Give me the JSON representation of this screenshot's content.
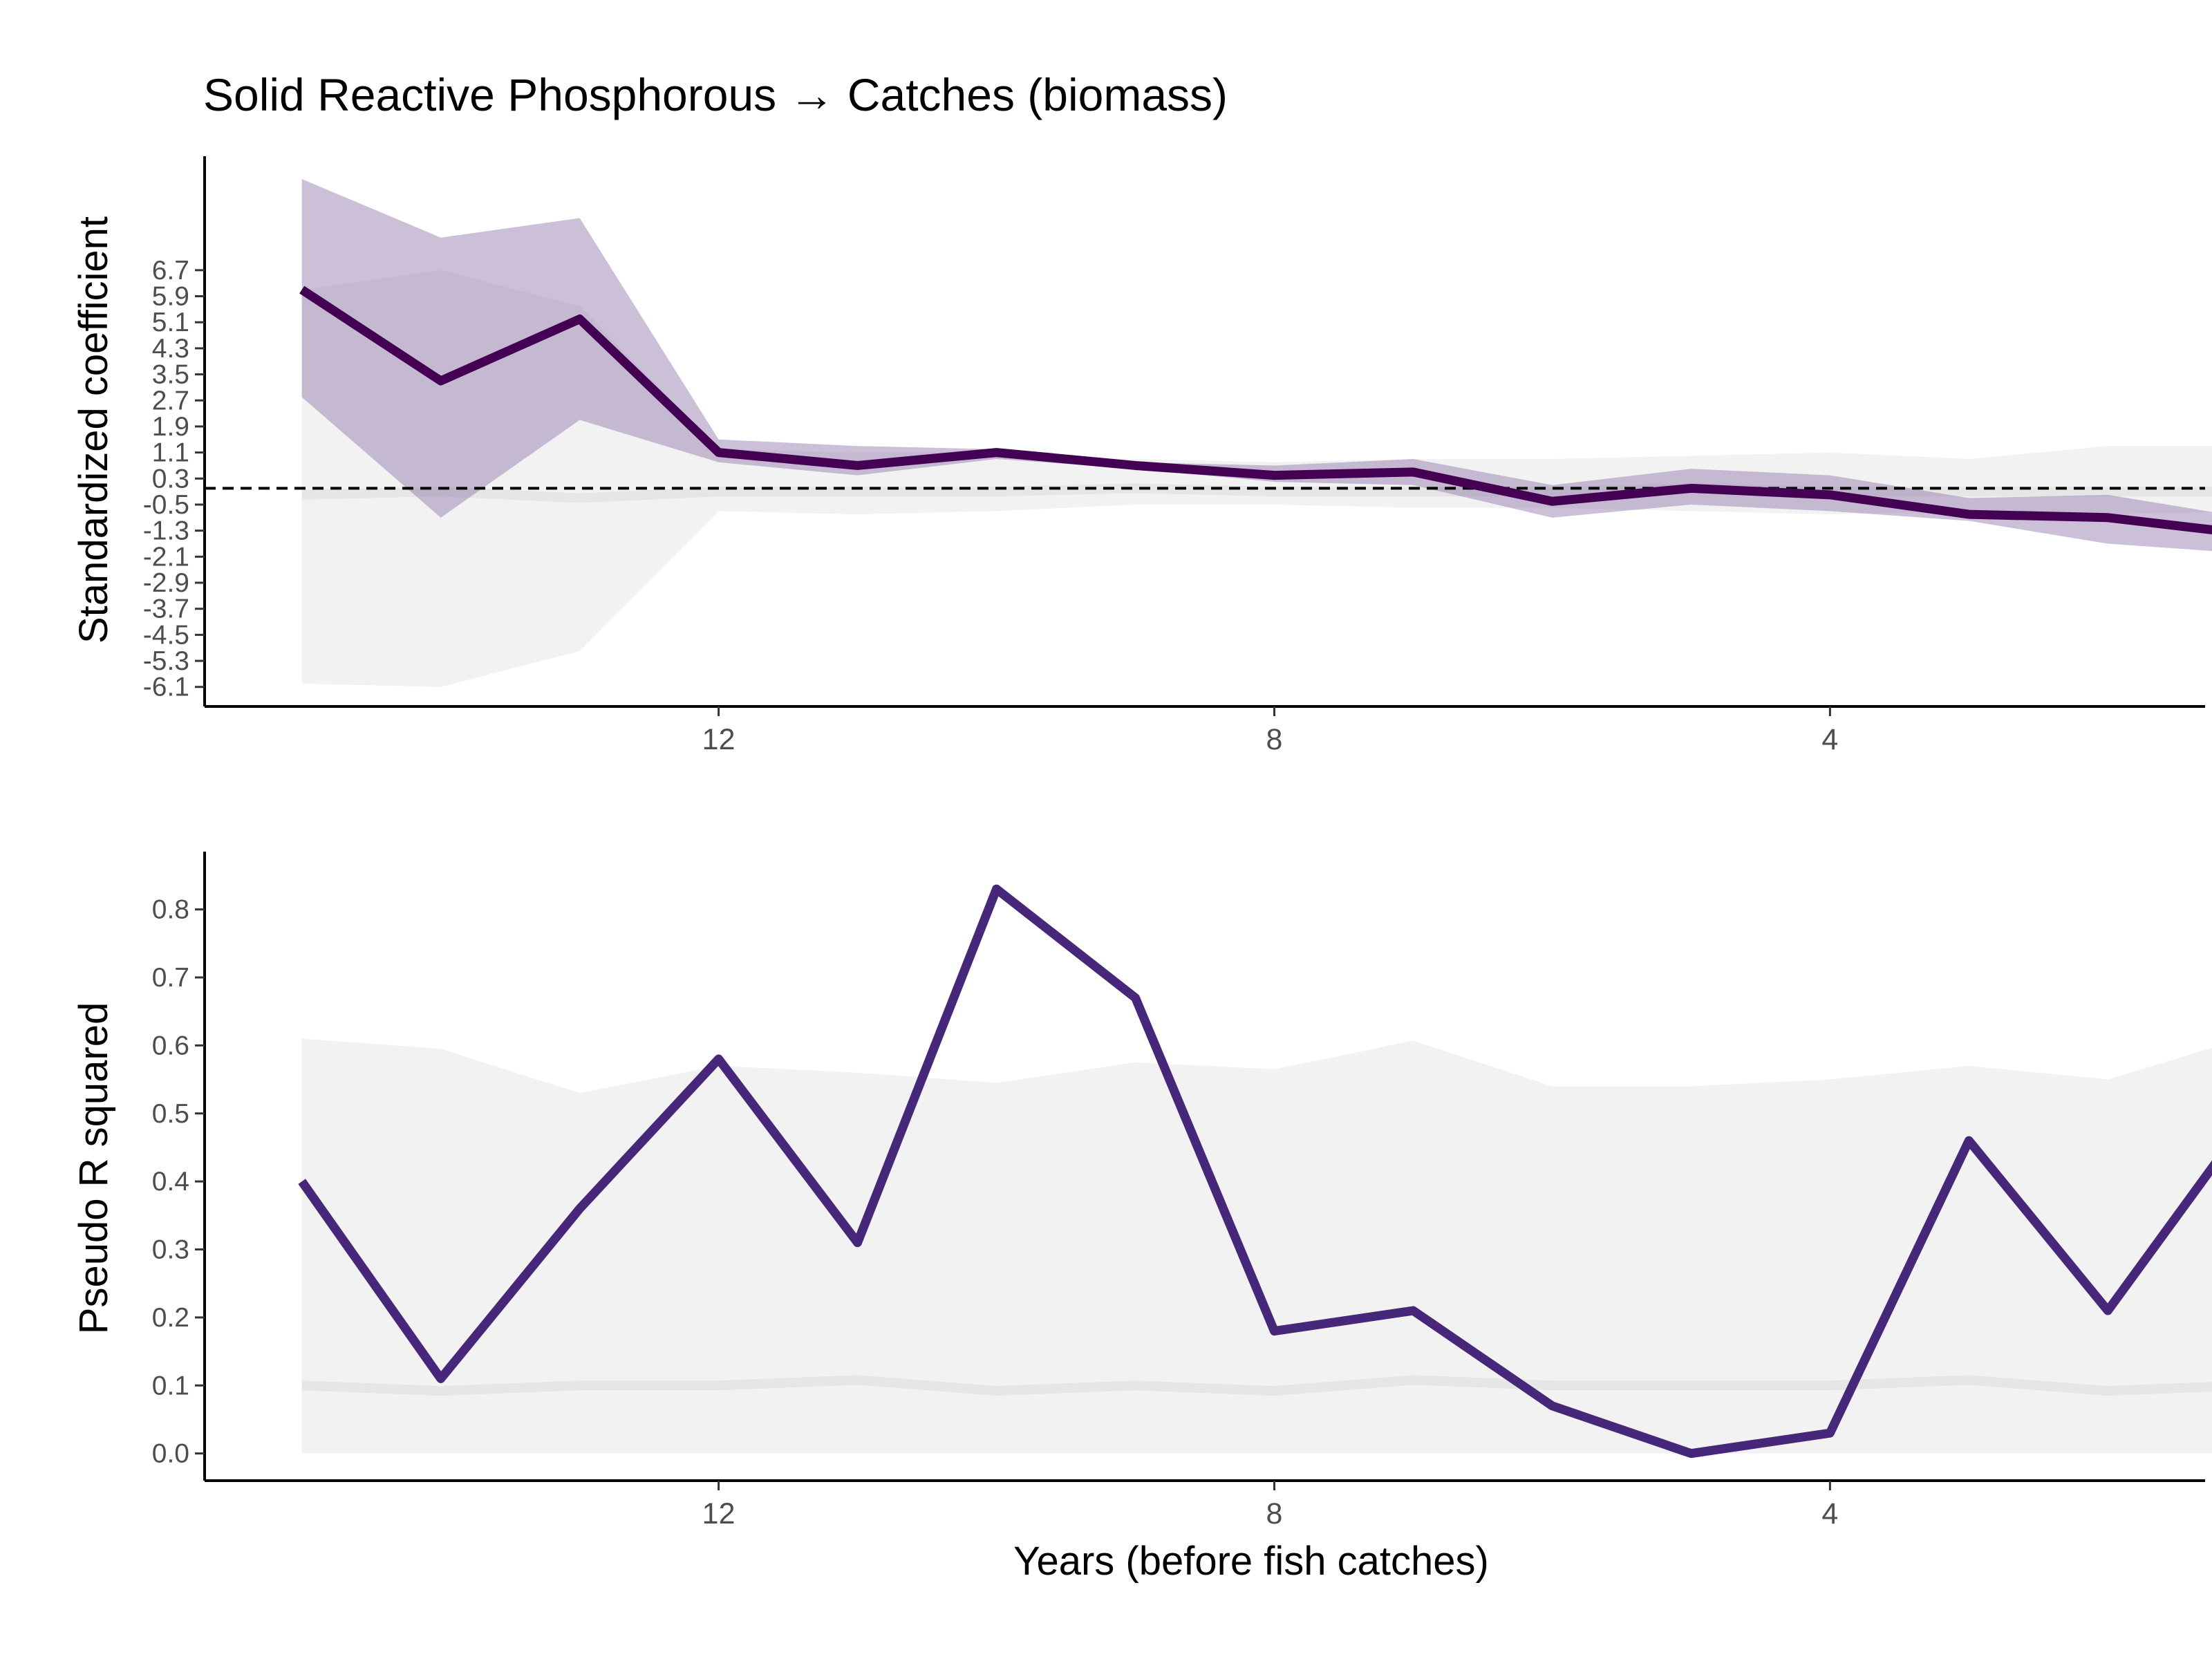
{
  "title": "Solid Reactive Phosphorous → Catches (biomass)",
  "colors": {
    "coef_line": "#440154",
    "coef_ci": "#8c74a8",
    "r2_line": "#46277a",
    "null_band": "#e6e6e6",
    "null_band_light": "#f2f2f2",
    "dashed": "#000000"
  },
  "chart_data": [
    {
      "type": "line",
      "ylabel": "Standardized coefficient",
      "xlabel": "",
      "x": [
        15,
        14,
        13,
        12,
        11,
        10,
        9,
        8,
        7,
        6,
        5,
        4,
        3,
        2,
        1
      ],
      "xlim": [
        15.7,
        1.3
      ],
      "x_ticks": [
        "12",
        "8",
        "4"
      ],
      "x_tick_values": [
        12,
        8,
        4
      ],
      "y_ticks": [
        "6.7",
        "5.9",
        "5.1",
        "4.3",
        "3.5",
        "2.7",
        "1.9",
        "1.1",
        "0.3",
        "-0.5",
        "-1.3",
        "-2.1",
        "-2.9",
        "-3.7",
        "-4.5",
        "-5.3",
        "-6.1"
      ],
      "y_tick_values": [
        6.7,
        5.9,
        5.1,
        4.3,
        3.5,
        2.7,
        1.9,
        1.1,
        0.3,
        -0.5,
        -1.3,
        -2.1,
        -2.9,
        -3.7,
        -4.5,
        -5.3,
        -6.1
      ],
      "ylim": [
        -6.7,
        10.2
      ],
      "reference_line_y": 0,
      "series": [
        {
          "role": "coefficient",
          "values": [
            6.1,
            3.3,
            5.2,
            1.1,
            0.7,
            1.1,
            0.7,
            0.4,
            0.5,
            -0.4,
            0.0,
            -0.2,
            -0.8,
            -0.9,
            -1.4
          ],
          "ci_upper": [
            9.5,
            7.7,
            8.3,
            1.5,
            1.3,
            1.2,
            0.8,
            0.7,
            0.9,
            0.1,
            0.6,
            0.4,
            -0.3,
            -0.2,
            -0.9
          ],
          "ci_lower": [
            2.8,
            -0.9,
            2.1,
            0.8,
            0.4,
            0.9,
            0.6,
            0.2,
            0.1,
            -0.9,
            -0.5,
            -0.7,
            -1.0,
            -1.7,
            -2.0
          ]
        },
        {
          "role": "null_model",
          "upper": [
            6.1,
            6.7,
            5.6,
            1.2,
            1.1,
            1.1,
            0.9,
            0.8,
            0.9,
            0.9,
            1.0,
            1.1,
            0.9,
            1.3,
            1.3
          ],
          "lower": [
            -6.0,
            -6.1,
            -5.0,
            -0.7,
            -0.8,
            -0.7,
            -0.5,
            -0.5,
            -0.6,
            -0.6,
            -0.7,
            -0.8,
            -0.7,
            -0.8,
            -0.7
          ],
          "center": [
            -0.2,
            -0.1,
            -0.3,
            -0.1,
            -0.1,
            -0.1,
            0.0,
            -0.1,
            -0.1,
            -0.1,
            0.0,
            -0.1,
            -0.1,
            -0.1,
            -0.1
          ]
        }
      ]
    },
    {
      "type": "line",
      "ylabel": "Pseudo R squared",
      "xlabel": "Years (before fish catches)",
      "x": [
        15,
        14,
        13,
        12,
        11,
        10,
        9,
        8,
        7,
        6,
        5,
        4,
        3,
        2,
        1
      ],
      "xlim": [
        15.7,
        1.3
      ],
      "x_ticks": [
        "12",
        "8",
        "4"
      ],
      "x_tick_values": [
        12,
        8,
        4
      ],
      "y_ticks": [
        "0.0",
        "0.1",
        "0.2",
        "0.3",
        "0.4",
        "0.5",
        "0.6",
        "0.7",
        "0.8"
      ],
      "y_tick_values": [
        0.0,
        0.1,
        0.2,
        0.3,
        0.4,
        0.5,
        0.6,
        0.7,
        0.8
      ],
      "ylim": [
        -0.04,
        0.885
      ],
      "series": [
        {
          "role": "pseudo_r2",
          "values": [
            0.4,
            0.11,
            0.36,
            0.58,
            0.31,
            0.83,
            0.67,
            0.18,
            0.21,
            0.07,
            0.0,
            0.03,
            0.46,
            0.21,
            0.49
          ]
        },
        {
          "role": "null_model",
          "upper": [
            0.61,
            0.595,
            0.53,
            0.57,
            0.56,
            0.545,
            0.575,
            0.565,
            0.607,
            0.54,
            0.54,
            0.55,
            0.57,
            0.55,
            0.612
          ],
          "lower": [
            0,
            0,
            0,
            0,
            0,
            0,
            0,
            0,
            0,
            0,
            0,
            0,
            0,
            0,
            0
          ],
          "center": [
            0.1,
            0.092,
            0.1,
            0.1,
            0.108,
            0.092,
            0.1,
            0.092,
            0.108,
            0.1,
            0.1,
            0.1,
            0.108,
            0.092,
            0.1
          ]
        }
      ]
    }
  ]
}
